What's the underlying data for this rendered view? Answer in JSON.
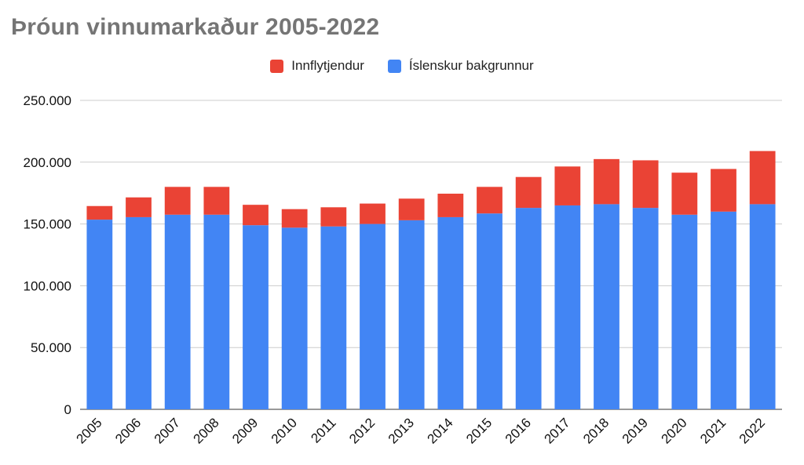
{
  "chart_data": {
    "type": "bar",
    "stacked": true,
    "title": "Þróun vinnumarkaður 2005-2022",
    "xlabel": "",
    "ylabel": "",
    "categories": [
      "2005",
      "2006",
      "2007",
      "2008",
      "2009",
      "2010",
      "2011",
      "2012",
      "2013",
      "2014",
      "2015",
      "2016",
      "2017",
      "2018",
      "2019",
      "2020",
      "2021",
      "2022"
    ],
    "series": [
      {
        "name": "Íslenskur bakgrunnur",
        "color": "#4285f4",
        "values": [
          153500,
          155500,
          157500,
          157500,
          149000,
          147000,
          148000,
          150000,
          153000,
          155500,
          158500,
          163000,
          165000,
          166000,
          163000,
          157500,
          160000,
          166000
        ]
      },
      {
        "name": "Innflytjendur",
        "color": "#ea4335",
        "values": [
          11000,
          16000,
          22500,
          22500,
          16500,
          15000,
          15500,
          16500,
          17500,
          19000,
          21500,
          25000,
          31500,
          36500,
          38500,
          34000,
          34500,
          43000
        ]
      }
    ],
    "legend_order": [
      1,
      0
    ],
    "ylim": [
      0,
      250000
    ],
    "yticks": [
      0,
      50000,
      100000,
      150000,
      200000,
      250000
    ],
    "ytick_labels": [
      "0",
      "50.000",
      "100.000",
      "150.000",
      "200.000",
      "250.000"
    ],
    "grid": true,
    "legend_position": "top-center"
  }
}
